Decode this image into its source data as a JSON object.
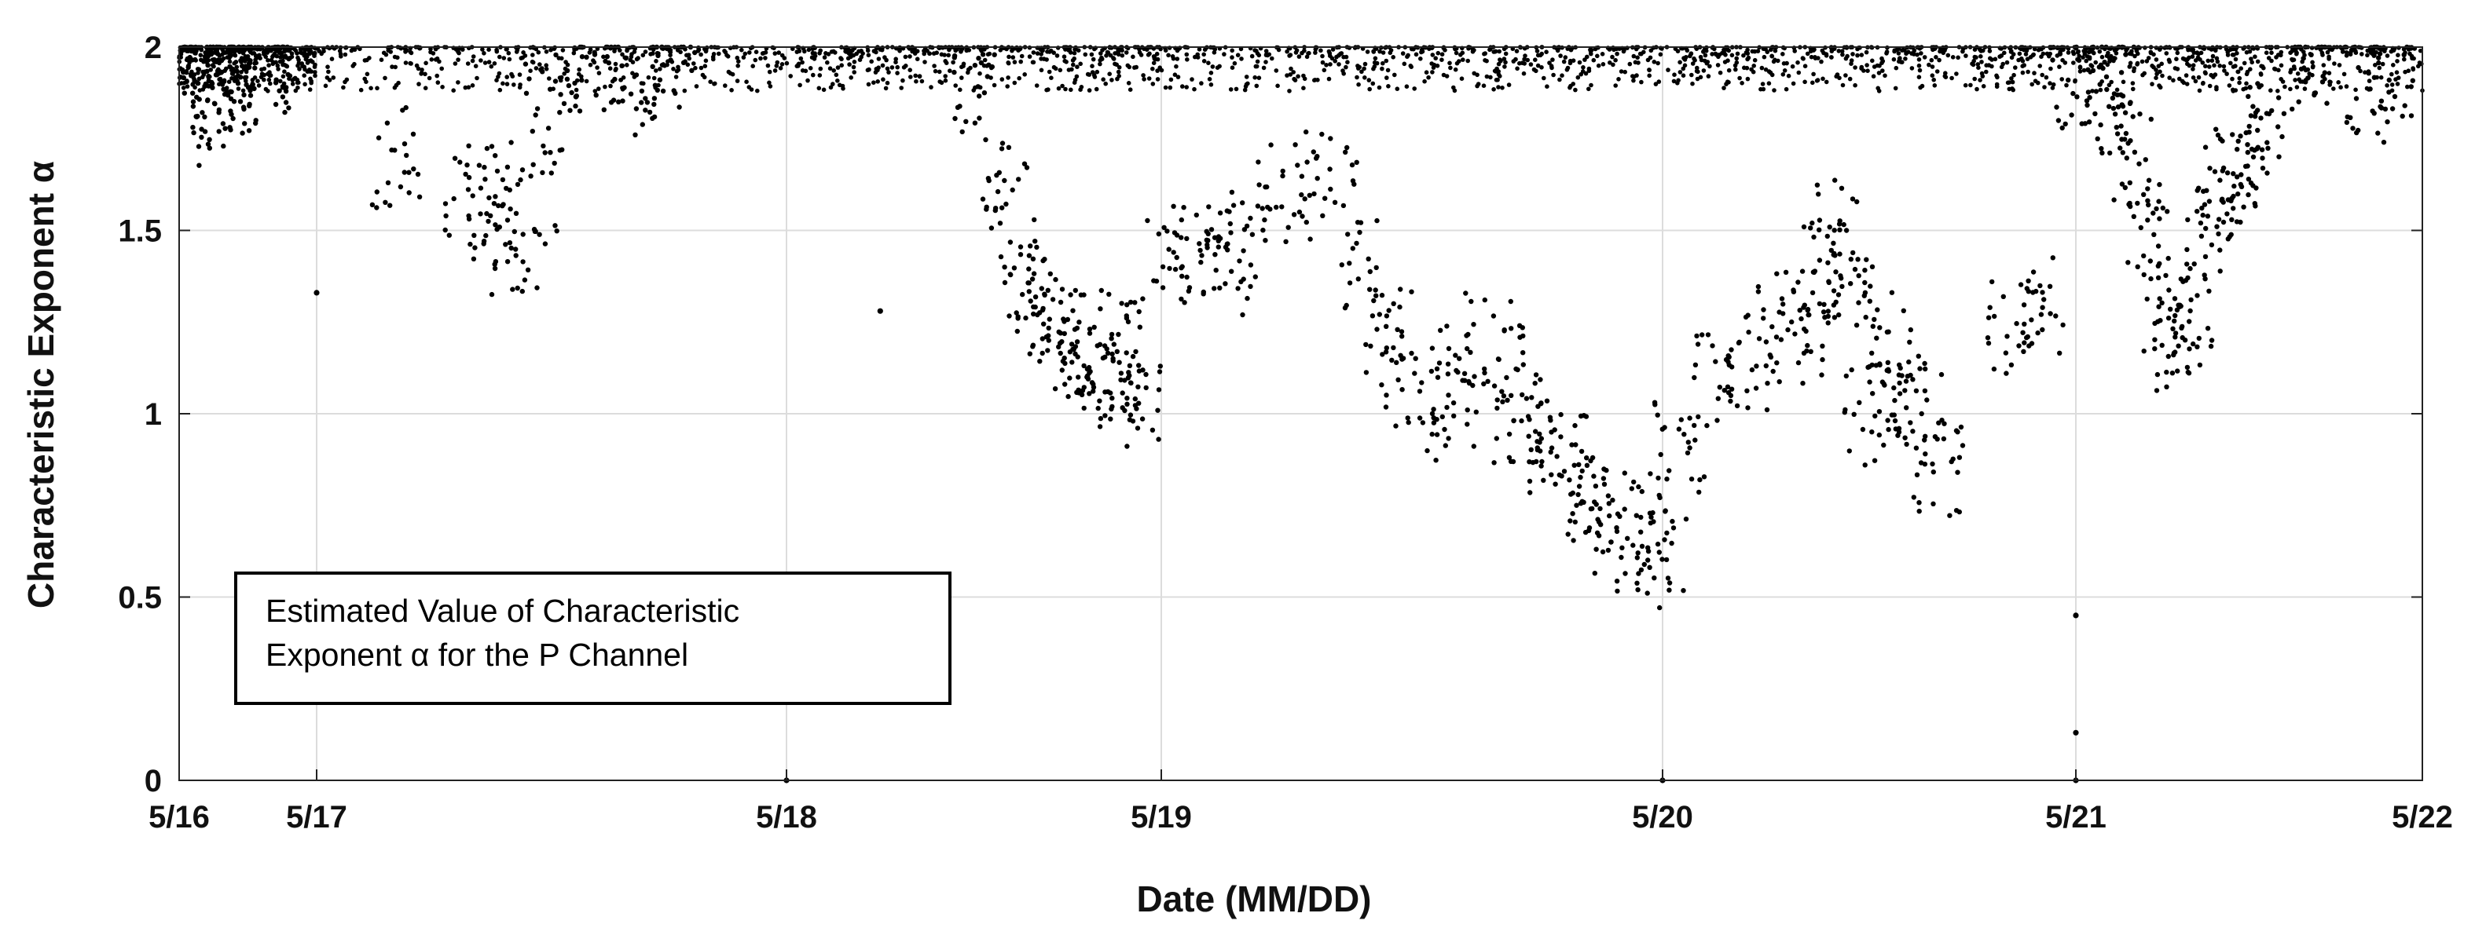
{
  "chart_data": {
    "type": "scatter",
    "title": "",
    "xlabel": "Date (MM/DD)",
    "ylabel": "Characteristic Exponent α",
    "x_type": "date",
    "xlim": [
      "5/16",
      "5/22"
    ],
    "ylim": [
      0,
      2
    ],
    "x_ticks": [
      "5/16",
      "5/17",
      "5/18",
      "5/19",
      "5/20",
      "5/21",
      "5/22"
    ],
    "y_ticks": [
      0,
      0.5,
      1,
      1.5,
      2
    ],
    "y_tick_labels": [
      "0",
      "0.5",
      "1",
      "1.5",
      "2"
    ],
    "grid": true,
    "marker_color": "#000000",
    "annotation": [
      "Estimated Value of Characteristic",
      "Exponent α for the P Channel"
    ],
    "series": [
      {
        "x": [
          "5/16 02:00",
          "5/16 04:00",
          "5/16 06:00",
          "5/16 08:00",
          "5/16 10:00",
          "5/16 12:00",
          "5/16 18:00",
          "5/17 04:00",
          "5/17 08:00",
          "5/17 09:00",
          "5/17 10:00",
          "5/17 11:00",
          "5/17 12:00",
          "5/17 14:00",
          "5/17 16:00",
          "5/17 18:00",
          "5/18 12:00",
          "5/18 14:00",
          "5/18 15:00",
          "5/18 16:00",
          "5/18 17:00",
          "5/18 18:00",
          "5/18 19:00",
          "5/18 20:00",
          "5/18 21:00",
          "5/18 22:00",
          "5/18 23:00",
          "5/19 00:00",
          "5/19 02:00",
          "5/19 03:00",
          "5/19 04:00",
          "5/19 06:00",
          "5/19 08:00",
          "5/19 10:00",
          "5/19 11:00",
          "5/19 12:00",
          "5/19 14:00",
          "5/19 15:00",
          "5/19 16:00",
          "5/19 17:00",
          "5/19 18:00",
          "5/19 19:00",
          "5/19 20:00",
          "5/19 21:00",
          "5/19 22:00",
          "5/19 23:00",
          "5/20 00:00",
          "5/20 01:00",
          "5/20 03:00",
          "5/20 05:00",
          "5/20 07:00",
          "5/20 08:00",
          "5/20 09:00",
          "5/20 10:00",
          "5/20 11:00",
          "5/20 12:00",
          "5/20 13:00",
          "5/20 14:00",
          "5/20 15:00",
          "5/20 16:00",
          "5/20 20:00",
          "5/20 22:00",
          "5/21 00:00",
          "5/21 02:00",
          "5/21 03:00",
          "5/21 04:00",
          "5/21 05:00",
          "5/21 06:00",
          "5/21 07:00",
          "5/21 08:00",
          "5/21 09:00",
          "5/21 10:00",
          "5/21 11:00",
          "5/21 12:00",
          "5/21 13:00",
          "5/21 16:00",
          "5/21 20:00",
          "5/21 22:00"
        ],
        "y": [
          1.9,
          1.8,
          1.95,
          1.85,
          1.95,
          1.9,
          1.96,
          1.7,
          1.6,
          1.55,
          1.45,
          1.6,
          1.85,
          1.95,
          1.9,
          1.96,
          1.85,
          1.6,
          1.4,
          1.3,
          1.25,
          1.2,
          1.15,
          1.1,
          1.2,
          1.1,
          1.05,
          1.4,
          1.45,
          1.4,
          1.5,
          1.6,
          1.65,
          1.4,
          1.2,
          1.1,
          1.0,
          1.1,
          1.2,
          1.0,
          0.95,
          0.9,
          0.8,
          0.75,
          0.7,
          0.65,
          0.6,
          0.9,
          1.1,
          1.15,
          1.25,
          1.2,
          1.4,
          1.5,
          1.3,
          1.0,
          1.2,
          1.05,
          1.0,
          0.85,
          1.25,
          1.3,
          1.9,
          1.85,
          1.95,
          1.7,
          1.5,
          1.3,
          1.2,
          1.25,
          1.5,
          1.6,
          1.65,
          1.7,
          1.8,
          1.95,
          1.9,
          1.88
        ]
      }
    ],
    "outliers": {
      "x": [
        "5/18 00:00",
        "5/20 00:00",
        "5/21 00:00",
        "5/21 00:00",
        "5/21 00:00",
        "5/17 00:00",
        "5/18 06:00"
      ],
      "y": [
        0.0,
        0.0,
        0.0,
        0.13,
        0.45,
        1.33,
        1.28
      ]
    }
  }
}
